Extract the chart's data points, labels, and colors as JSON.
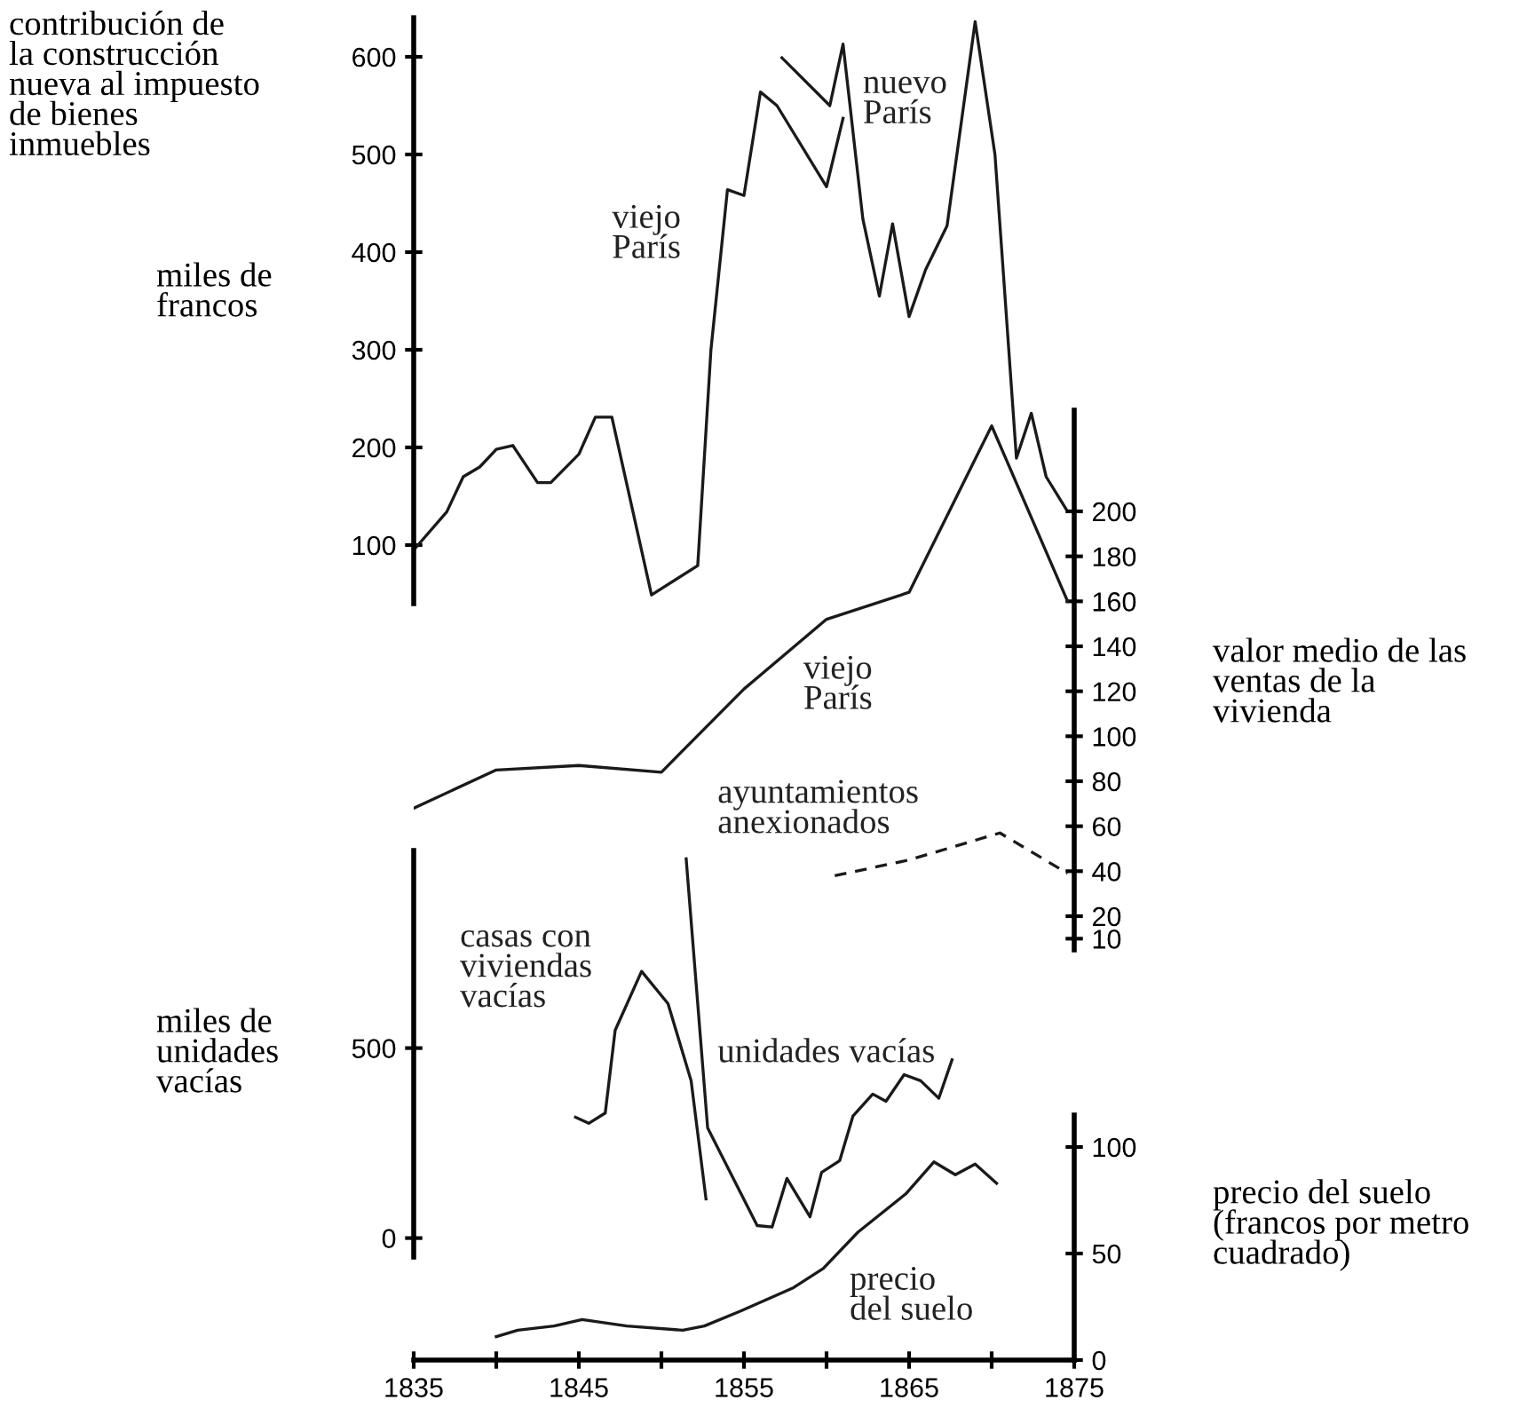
{
  "chart_data": [
    {
      "type": "line",
      "title": "contribución de\nla construcción\nnueva al impuesto\nde bienes\ninmuebles",
      "ylabel": "miles de\nfrancos",
      "xlim": [
        1835,
        1875
      ],
      "ylim": [
        40,
        640
      ],
      "yticks": [
        100,
        200,
        300,
        400,
        500,
        600
      ],
      "tick_labels": "y",
      "color": "#1a1a1a",
      "series": [
        {
          "name": "viejo\nParís",
          "x": [
            1835,
            1837,
            1838,
            1839,
            1840,
            1841,
            1842.5,
            1843.3,
            1845,
            1846,
            1847,
            1849.4,
            1852.2,
            1853,
            1854,
            1855,
            1856,
            1857,
            1860,
            1861
          ],
          "values": [
            95,
            134,
            170,
            180,
            198,
            202,
            164,
            164,
            193,
            231,
            231,
            49,
            79,
            300,
            464,
            458,
            564,
            550,
            467,
            537
          ]
        },
        {
          "name": "nuevo\nParís",
          "x": [
            1857.3,
            1860.2,
            1861,
            1862.2,
            1863.2,
            1864,
            1865,
            1866,
            1867.3,
            1869,
            1870.2,
            1871.5,
            1872.4,
            1873.3,
            1874.5
          ],
          "values": [
            599,
            550,
            613,
            434,
            355,
            429,
            334,
            382,
            427,
            636,
            500,
            189,
            235,
            170,
            137
          ]
        }
      ]
    },
    {
      "type": "line",
      "y2label": "valor medio de las\nventas de la\nvivienda",
      "xlim": [
        1835,
        1875
      ],
      "y2lim": [
        5,
        245
      ],
      "y2ticks": [
        10,
        20,
        40,
        60,
        80,
        100,
        120,
        140,
        160,
        180,
        200
      ],
      "tick_labels": "y",
      "color": "#1a1a1a",
      "series": [
        {
          "name": "viejo\nParís",
          "axis": "y2",
          "x": [
            1835,
            1840,
            1845,
            1850,
            1855,
            1860,
            1865,
            1870,
            1874.6
          ],
          "values": [
            68,
            85,
            87,
            84,
            121,
            152,
            164,
            238,
            160
          ]
        },
        {
          "name": "ayuntamientos\nanexionados",
          "axis": "y2",
          "line_style": "dashed",
          "x": [
            1860.5,
            1865,
            1870.5,
            1874.6
          ],
          "values": [
            38,
            45,
            57,
            39
          ]
        }
      ]
    },
    {
      "type": "line",
      "ylabel": "miles de\nunidades\nvacías",
      "xlim": [
        1835,
        1875
      ],
      "ylim": [
        -50,
        1020
      ],
      "yticks": [
        0,
        500
      ],
      "tick_labels": "y",
      "color": "#1a1a1a",
      "series": [
        {
          "name": "casas con\nviviendas\nvacías",
          "x": [
            1844.8,
            1845.6,
            1846.6,
            1847.2,
            1848.8,
            1850.4,
            1851.8,
            1852.7
          ],
          "values": [
            318,
            302,
            329,
            547,
            702,
            617,
            414,
            103
          ]
        },
        {
          "name": "unidades vacías",
          "x": [
            1851.5,
            1852.8,
            1855.8,
            1856.7,
            1857.6,
            1859,
            1859.7,
            1860.8,
            1861.6,
            1862.8,
            1863.6,
            1864.7,
            1865.7,
            1866.8,
            1867.6
          ],
          "values": [
            998,
            290,
            33,
            29,
            157,
            56,
            173,
            204,
            321,
            379,
            360,
            430,
            414,
            368,
            469
          ]
        }
      ]
    },
    {
      "type": "line",
      "y2label": "precio del suelo\n(francos por metro\ncuadrado)",
      "xlim": [
        1835,
        1875
      ],
      "xticks": [
        1835,
        {
          "value": 1840,
          "label": null
        },
        1845,
        {
          "value": 1850,
          "label": null
        },
        1855,
        {
          "value": 1860,
          "label": null
        },
        1865,
        {
          "value": 1870,
          "label": null
        },
        1875
      ],
      "y2lim": [
        0,
        115
      ],
      "y2ticks": [
        0,
        50,
        100
      ],
      "color": "#1a1a1a",
      "series": [
        {
          "name": "precio\ndel suelo",
          "axis": "y2",
          "x": [
            1840,
            1841.3,
            1843.5,
            1845.2,
            1847.9,
            1851.3,
            1852.6,
            1854.8,
            1858,
            1859.8,
            1861.9,
            1864.8,
            1866.5,
            1867.8,
            1869,
            1870.3
          ],
          "values": [
            11,
            14,
            16,
            19,
            16,
            14,
            16,
            23,
            34,
            43,
            60,
            78,
            93,
            87,
            92,
            83
          ]
        }
      ]
    }
  ]
}
